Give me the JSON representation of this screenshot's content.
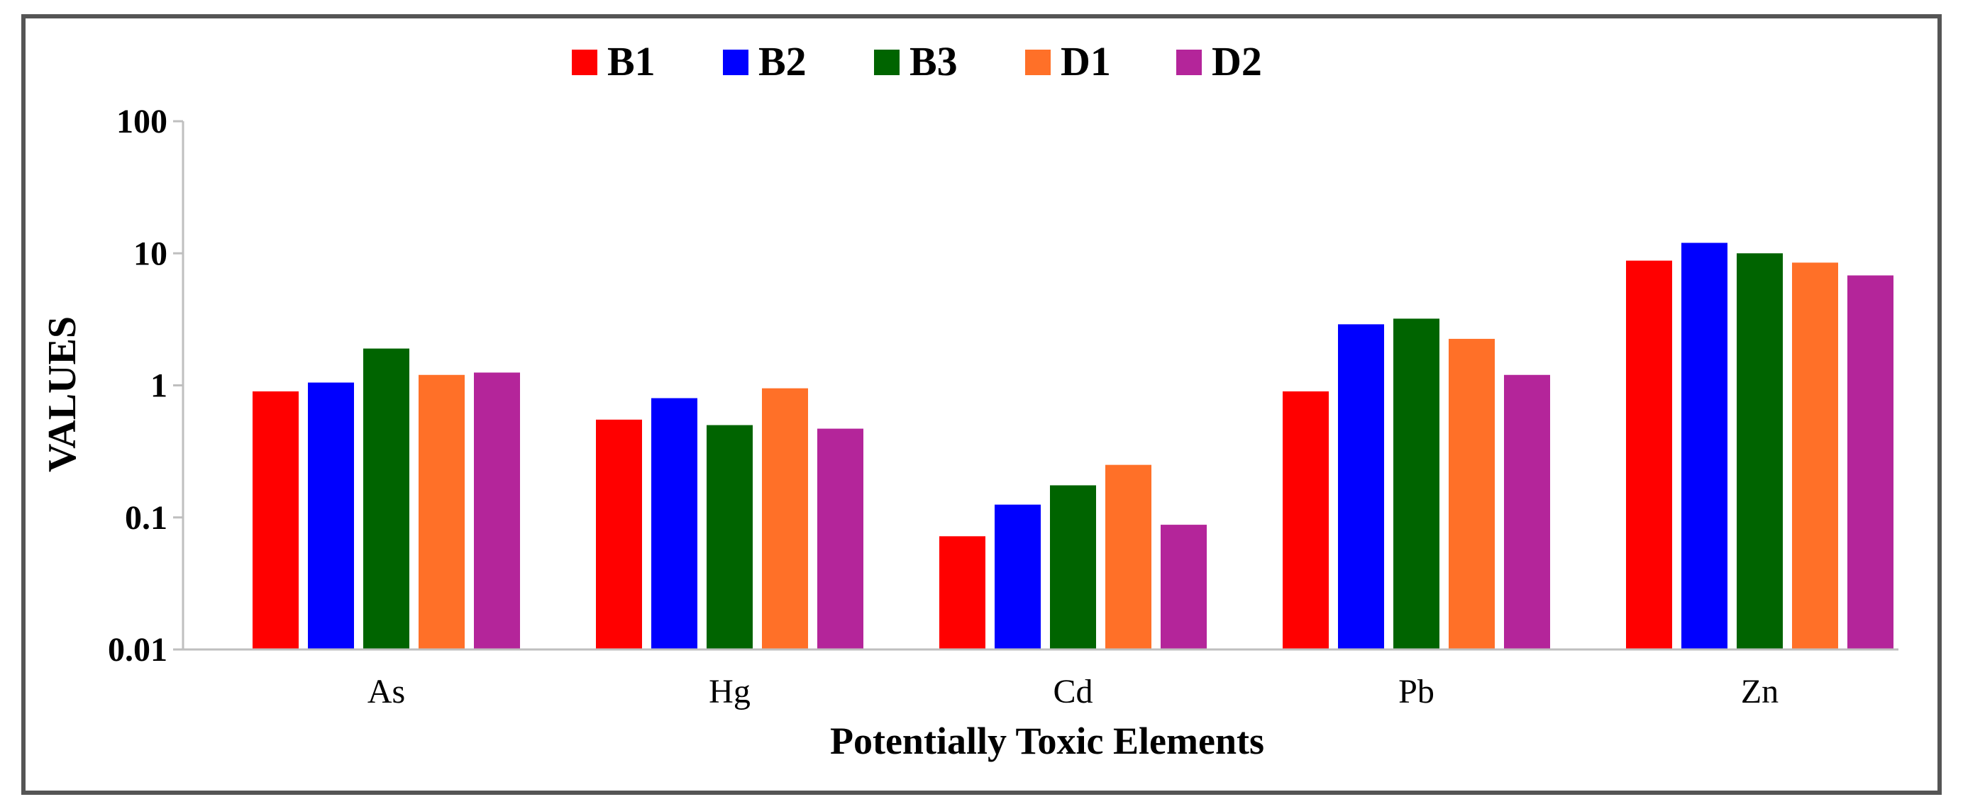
{
  "chart_data": {
    "type": "bar",
    "title": "",
    "xlabel": "Potentially Toxic Elements",
    "ylabel": "VALUES",
    "yscale": "log",
    "ylim": [
      0.01,
      100
    ],
    "yticks": [
      {
        "value": 0.01,
        "label": "0.01"
      },
      {
        "value": 0.1,
        "label": "0.1"
      },
      {
        "value": 1,
        "label": "1"
      },
      {
        "value": 10,
        "label": "10"
      },
      {
        "value": 100,
        "label": "100"
      }
    ],
    "grid": false,
    "legend_position": "top",
    "categories": [
      "As",
      "Hg",
      "Cd",
      "Pb",
      "Zn"
    ],
    "series": [
      {
        "name": "B1",
        "color": "#ff0000",
        "values": [
          0.9,
          0.55,
          0.072,
          0.9,
          8.8
        ]
      },
      {
        "name": "B2",
        "color": "#0000ff",
        "values": [
          1.05,
          0.8,
          0.125,
          2.9,
          12.0
        ]
      },
      {
        "name": "B3",
        "color": "#006400",
        "values": [
          1.9,
          0.5,
          0.175,
          3.2,
          10.0
        ]
      },
      {
        "name": "D1",
        "color": "#ff7028",
        "values": [
          1.2,
          0.95,
          0.25,
          2.25,
          8.5
        ]
      },
      {
        "name": "D2",
        "color": "#b4259a",
        "values": [
          1.25,
          0.47,
          0.088,
          1.2,
          6.8
        ]
      }
    ]
  }
}
